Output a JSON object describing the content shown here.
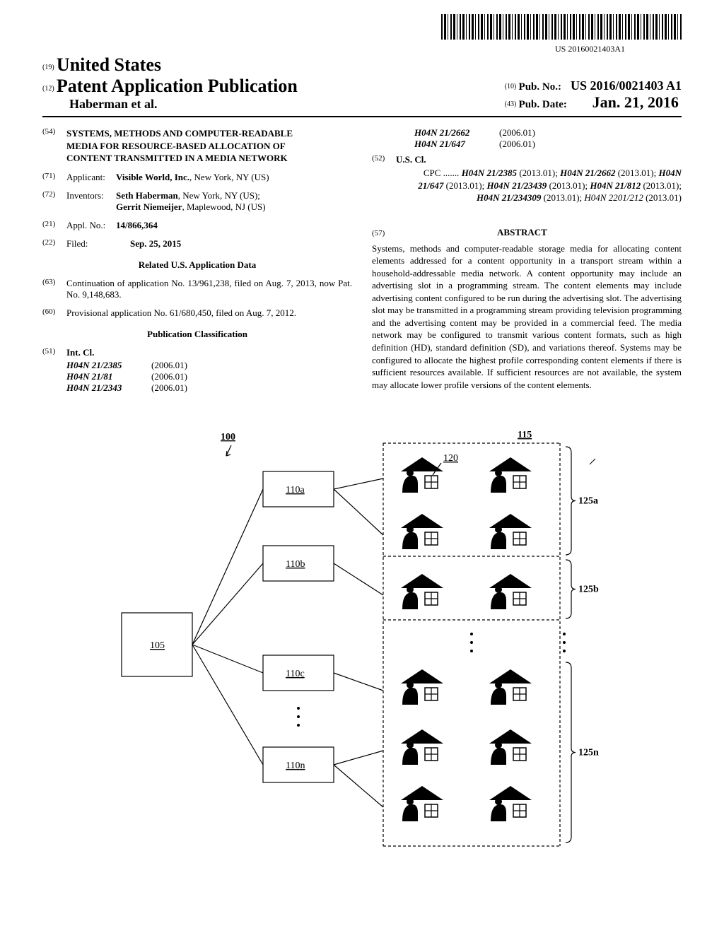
{
  "barcode_number": "US 20160021403A1",
  "header": {
    "code19": "(19)",
    "country": "United States",
    "code12": "(12)",
    "doc_type": "Patent Application Publication",
    "authors_line": "Haberman et al.",
    "code10": "(10)",
    "pub_no_label": "Pub. No.:",
    "pub_no": "US 2016/0021403 A1",
    "code43": "(43)",
    "pub_date_label": "Pub. Date:",
    "pub_date": "Jan. 21, 2016"
  },
  "left": {
    "f54_code": "(54)",
    "f54_title": "SYSTEMS, METHODS AND COMPUTER-READABLE MEDIA FOR RESOURCE-BASED ALLOCATION OF CONTENT TRANSMITTED IN A MEDIA NETWORK",
    "f71_code": "(71)",
    "f71_label": "Applicant:",
    "f71_val_bold": "Visible World, Inc.",
    "f71_val_rest": ", New York, NY (US)",
    "f72_code": "(72)",
    "f72_label": "Inventors:",
    "f72_val1_bold": "Seth Haberman",
    "f72_val1_rest": ", New York, NY (US);",
    "f72_val2_bold": "Gerrit Niemeijer",
    "f72_val2_rest": ", Maplewood, NJ (US)",
    "f21_code": "(21)",
    "f21_label": "Appl. No.:",
    "f21_val": "14/866,364",
    "f22_code": "(22)",
    "f22_label": "Filed:",
    "f22_val": "Sep. 25, 2015",
    "related_hdr": "Related U.S. Application Data",
    "f63_code": "(63)",
    "f63_text": "Continuation of application No. 13/961,238, filed on Aug. 7, 2013, now Pat. No. 9,148,683.",
    "f60_code": "(60)",
    "f60_text": "Provisional application No. 61/680,450, filed on Aug. 7, 2012.",
    "pub_class_hdr": "Publication Classification",
    "f51_code": "(51)",
    "f51_label": "Int. Cl.",
    "int_cl": [
      {
        "code": "H04N 21/2385",
        "year": "(2006.01)"
      },
      {
        "code": "H04N 21/81",
        "year": "(2006.01)"
      },
      {
        "code": "H04N 21/2343",
        "year": "(2006.01)"
      }
    ]
  },
  "right": {
    "int_cl_cont": [
      {
        "code": "H04N 21/2662",
        "year": "(2006.01)"
      },
      {
        "code": "H04N 21/647",
        "year": "(2006.01)"
      }
    ],
    "f52_code": "(52)",
    "f52_label": "U.S. Cl.",
    "cpc_prefix": "CPC .......",
    "cpc_items": [
      {
        "code": "H04N 21/2385",
        "year": "(2013.01)",
        "bold": true
      },
      {
        "code": "H04N 21/2662",
        "year": "(2013.01)",
        "bold": true
      },
      {
        "code": "H04N 21/647",
        "year": "(2013.01)",
        "bold": true
      },
      {
        "code": "H04N 21/23439",
        "year": "(2013.01)",
        "bold": true
      },
      {
        "code": "H04N 21/812",
        "year": "(2013.01)",
        "bold": true
      },
      {
        "code": "H04N 21/234309",
        "year": "(2013.01)",
        "bold": true
      },
      {
        "code": "H04N 2201/212",
        "year": "(2013.01)",
        "bold": false
      }
    ],
    "f57_code": "(57)",
    "abstract_hdr": "ABSTRACT",
    "abstract": "Systems, methods and computer-readable storage media for allocating content elements addressed for a content opportunity in a transport stream within a household-addressable media network. A content opportunity may include an advertising slot in a programming stream. The content elements may include advertising content configured to be run during the advertising slot. The advertising slot may be transmitted in a programming stream providing television programming and the advertising content may be provided in a commercial feed. The media network may be configured to transmit various content formats, such as high definition (HD), standard definition (SD), and variations thereof. Systems may be configured to allocate the highest profile corresponding content elements if there is sufficient resources available. If sufficient resources are not available, the system may allocate lower profile versions of the content elements."
  },
  "figure": {
    "ref_100": "100",
    "ref_105": "105",
    "ref_110a": "110a",
    "ref_110b": "110b",
    "ref_110c": "110c",
    "ref_110n": "110n",
    "ref_115": "115",
    "ref_120": "120",
    "ref_125a": "125a",
    "ref_125b": "125b",
    "ref_125n": "125n",
    "box_stroke": "#000000",
    "line_stroke": "#000000",
    "dash": "4,3",
    "house_fill": "#000000",
    "window_stroke": "#000000"
  }
}
